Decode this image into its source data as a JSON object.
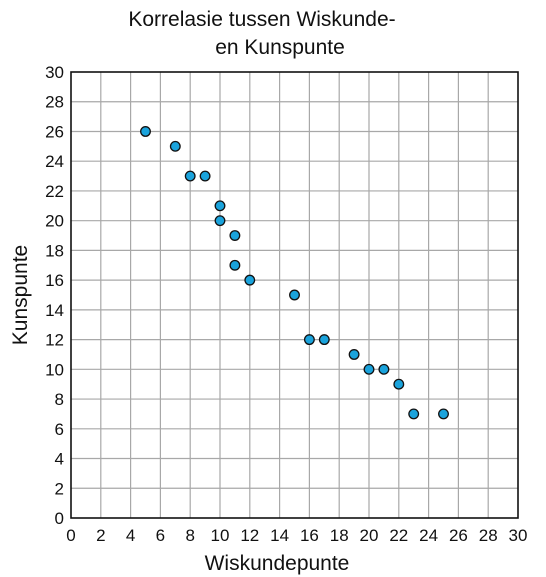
{
  "chart_data": {
    "type": "scatter",
    "title_lines": [
      "Korrelasie tussen Wiskunde-",
      "en Kunspunte"
    ],
    "xlabel": "Wiskundepunte",
    "ylabel": "Kunspunte",
    "xlim": [
      0,
      30
    ],
    "ylim": [
      0,
      30
    ],
    "x_ticks": [
      0,
      2,
      4,
      6,
      8,
      10,
      12,
      14,
      16,
      18,
      20,
      22,
      24,
      26,
      28,
      30
    ],
    "y_ticks": [
      0,
      2,
      4,
      6,
      8,
      10,
      12,
      14,
      16,
      18,
      20,
      22,
      24,
      26,
      28,
      30
    ],
    "grid": true,
    "grid_step": 2,
    "point_color": "#1aa3dc",
    "points": [
      {
        "x": 5,
        "y": 26
      },
      {
        "x": 7,
        "y": 25
      },
      {
        "x": 8,
        "y": 23
      },
      {
        "x": 9,
        "y": 23
      },
      {
        "x": 10,
        "y": 21
      },
      {
        "x": 10,
        "y": 20
      },
      {
        "x": 11,
        "y": 19
      },
      {
        "x": 11,
        "y": 17
      },
      {
        "x": 12,
        "y": 16
      },
      {
        "x": 15,
        "y": 15
      },
      {
        "x": 16,
        "y": 12
      },
      {
        "x": 17,
        "y": 12
      },
      {
        "x": 19,
        "y": 11
      },
      {
        "x": 20,
        "y": 10
      },
      {
        "x": 21,
        "y": 10
      },
      {
        "x": 22,
        "y": 9
      },
      {
        "x": 23,
        "y": 7
      },
      {
        "x": 25,
        "y": 7
      }
    ]
  }
}
